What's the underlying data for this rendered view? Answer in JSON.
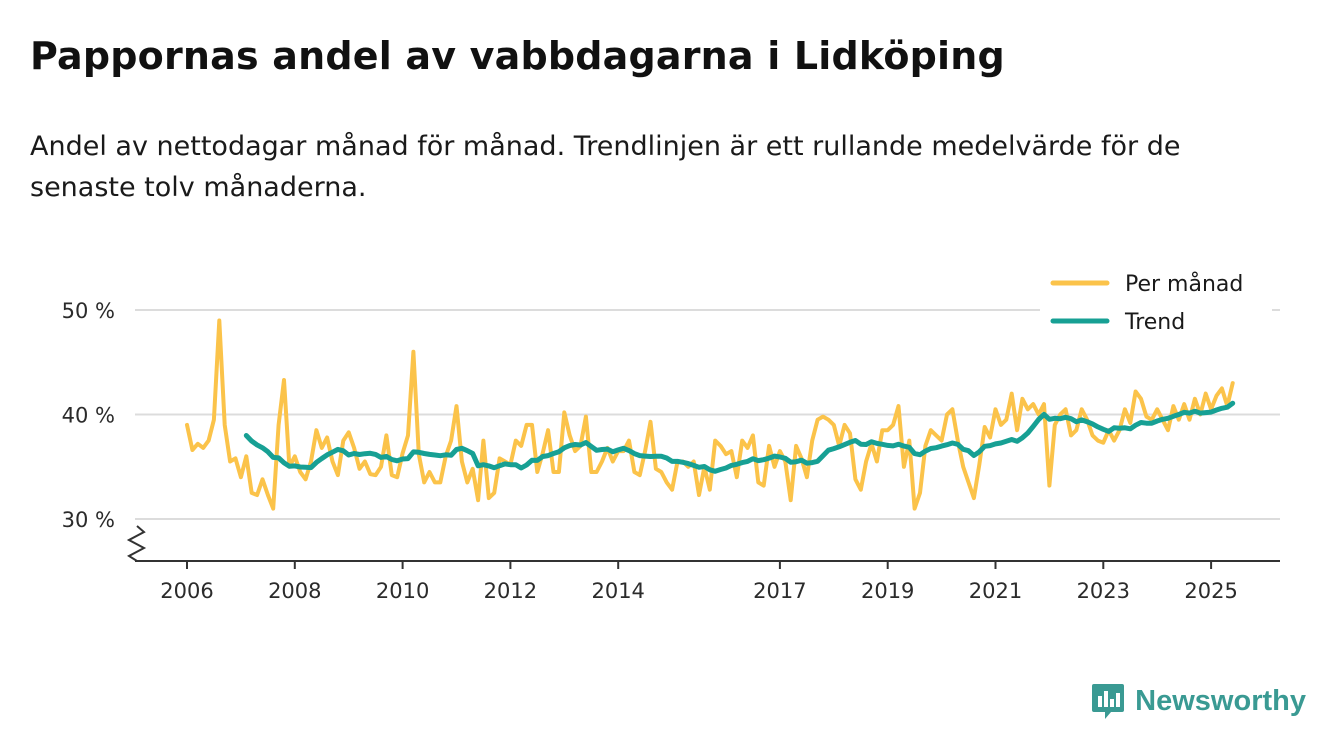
{
  "title": "Pappornas andel av vabbdagarna i Lidköping",
  "subtitle": "Andel av nettodagar månad för månad. Trendlinjen är ett rullande medelvärde för de senaste tolv månaderna.",
  "brand": {
    "name": "Newsworthy",
    "icon": "newsworthy-chart-icon",
    "color": "#3a9a93"
  },
  "colors": {
    "monthly": "#fbc34a",
    "trend": "#17a094",
    "grid": "#dcdcdc",
    "axis": "#333333"
  },
  "chart_data": {
    "type": "line",
    "title": "Pappornas andel av vabbdagarna i Lidköping",
    "xlabel": "",
    "ylabel": "",
    "ylim": [
      26,
      50
    ],
    "y_ticks": [
      30,
      40,
      50
    ],
    "y_tick_labels": [
      "30 %",
      "40 %",
      "50 %"
    ],
    "x_ticks": [
      2006,
      2008,
      2010,
      2012,
      2014,
      2017,
      2019,
      2021,
      2023,
      2025
    ],
    "x_tick_labels": [
      "2006",
      "2008",
      "2010",
      "2012",
      "2014",
      "2017",
      "2019",
      "2021",
      "2023",
      "2025"
    ],
    "x_range": [
      2006,
      2025.4
    ],
    "axis_break": true,
    "grid": true,
    "legend_position": "top-right",
    "series": [
      {
        "name": "Per månad",
        "color": "#fbc34a",
        "points": [
          [
            2006.0,
            39.0
          ],
          [
            2006.1,
            36.6
          ],
          [
            2006.2,
            37.2
          ],
          [
            2006.3,
            36.8
          ],
          [
            2006.4,
            37.5
          ],
          [
            2006.5,
            39.5
          ],
          [
            2006.6,
            49.0
          ],
          [
            2006.7,
            39.0
          ],
          [
            2006.8,
            35.5
          ],
          [
            2006.9,
            35.8
          ],
          [
            2007.0,
            34.0
          ],
          [
            2007.1,
            36.0
          ],
          [
            2007.2,
            32.5
          ],
          [
            2007.3,
            32.3
          ],
          [
            2007.4,
            33.8
          ],
          [
            2007.5,
            32.3
          ],
          [
            2007.6,
            31.0
          ],
          [
            2007.7,
            39.0
          ],
          [
            2007.8,
            43.3
          ],
          [
            2007.9,
            35.0
          ],
          [
            2008.0,
            36.0
          ],
          [
            2008.1,
            34.5
          ],
          [
            2008.2,
            33.8
          ],
          [
            2008.3,
            35.5
          ],
          [
            2008.4,
            38.5
          ],
          [
            2008.5,
            36.8
          ],
          [
            2008.6,
            37.8
          ],
          [
            2008.7,
            35.5
          ],
          [
            2008.8,
            34.2
          ],
          [
            2008.9,
            37.5
          ],
          [
            2009.0,
            38.3
          ],
          [
            2009.1,
            36.8
          ],
          [
            2009.2,
            34.8
          ],
          [
            2009.3,
            35.5
          ],
          [
            2009.4,
            34.3
          ],
          [
            2009.5,
            34.2
          ],
          [
            2009.6,
            35.0
          ],
          [
            2009.7,
            38.0
          ],
          [
            2009.8,
            34.2
          ],
          [
            2009.9,
            34.0
          ],
          [
            2010.0,
            36.3
          ],
          [
            2010.1,
            38.0
          ],
          [
            2010.2,
            46.0
          ],
          [
            2010.3,
            36.2
          ],
          [
            2010.4,
            33.5
          ],
          [
            2010.5,
            34.5
          ],
          [
            2010.6,
            33.5
          ],
          [
            2010.7,
            33.5
          ],
          [
            2010.8,
            36.0
          ],
          [
            2010.9,
            37.5
          ],
          [
            2011.0,
            40.8
          ],
          [
            2011.1,
            35.5
          ],
          [
            2011.2,
            33.5
          ],
          [
            2011.3,
            34.8
          ],
          [
            2011.4,
            31.8
          ],
          [
            2011.5,
            37.5
          ],
          [
            2011.6,
            32.0
          ],
          [
            2011.7,
            32.5
          ],
          [
            2011.8,
            35.8
          ],
          [
            2011.9,
            35.5
          ],
          [
            2012.0,
            35.2
          ],
          [
            2012.1,
            37.5
          ],
          [
            2012.2,
            37.0
          ],
          [
            2012.3,
            39.0
          ],
          [
            2012.4,
            39.0
          ],
          [
            2012.5,
            34.5
          ],
          [
            2012.6,
            36.3
          ],
          [
            2012.7,
            38.5
          ],
          [
            2012.8,
            34.5
          ],
          [
            2012.9,
            34.5
          ],
          [
            2013.0,
            40.2
          ],
          [
            2013.1,
            38.0
          ],
          [
            2013.2,
            36.5
          ],
          [
            2013.3,
            37.0
          ],
          [
            2013.4,
            39.8
          ],
          [
            2013.5,
            34.5
          ],
          [
            2013.6,
            34.5
          ],
          [
            2013.7,
            35.5
          ],
          [
            2013.8,
            36.8
          ],
          [
            2013.9,
            35.5
          ],
          [
            2014.0,
            36.5
          ],
          [
            2014.1,
            36.5
          ],
          [
            2014.2,
            37.5
          ],
          [
            2014.3,
            34.5
          ],
          [
            2014.4,
            34.2
          ],
          [
            2014.5,
            36.5
          ],
          [
            2014.6,
            39.3
          ],
          [
            2014.7,
            34.8
          ],
          [
            2014.8,
            34.5
          ],
          [
            2014.9,
            33.5
          ],
          [
            2015.0,
            32.8
          ],
          [
            2015.1,
            35.5
          ],
          [
            2015.2,
            35.5
          ],
          [
            2015.3,
            35.0
          ],
          [
            2015.4,
            35.5
          ],
          [
            2015.5,
            32.3
          ],
          [
            2015.6,
            35.0
          ],
          [
            2015.7,
            32.8
          ],
          [
            2015.8,
            37.5
          ],
          [
            2015.9,
            37.0
          ],
          [
            2016.0,
            36.2
          ],
          [
            2016.1,
            36.5
          ],
          [
            2016.2,
            34.0
          ],
          [
            2016.3,
            37.5
          ],
          [
            2016.4,
            36.8
          ],
          [
            2016.5,
            38.0
          ],
          [
            2016.6,
            33.5
          ],
          [
            2016.7,
            33.2
          ],
          [
            2016.8,
            37.0
          ],
          [
            2016.9,
            35.0
          ],
          [
            2017.0,
            36.5
          ],
          [
            2017.1,
            35.5
          ],
          [
            2017.2,
            31.8
          ],
          [
            2017.3,
            37.0
          ],
          [
            2017.4,
            35.8
          ],
          [
            2017.5,
            34.0
          ],
          [
            2017.6,
            37.5
          ],
          [
            2017.7,
            39.5
          ],
          [
            2017.8,
            39.8
          ],
          [
            2017.9,
            39.5
          ],
          [
            2018.0,
            39.0
          ],
          [
            2018.1,
            37.0
          ],
          [
            2018.2,
            39.0
          ],
          [
            2018.3,
            38.2
          ],
          [
            2018.4,
            33.8
          ],
          [
            2018.5,
            32.8
          ],
          [
            2018.6,
            35.5
          ],
          [
            2018.7,
            37.2
          ],
          [
            2018.8,
            35.5
          ],
          [
            2018.9,
            38.5
          ],
          [
            2019.0,
            38.5
          ],
          [
            2019.1,
            39.0
          ],
          [
            2019.2,
            40.8
          ],
          [
            2019.3,
            35.0
          ],
          [
            2019.4,
            37.5
          ],
          [
            2019.5,
            31.0
          ],
          [
            2019.6,
            32.5
          ],
          [
            2019.7,
            37.0
          ],
          [
            2019.8,
            38.5
          ],
          [
            2019.9,
            38.0
          ],
          [
            2020.0,
            37.5
          ],
          [
            2020.1,
            40.0
          ],
          [
            2020.2,
            40.5
          ],
          [
            2020.3,
            37.5
          ],
          [
            2020.4,
            35.0
          ],
          [
            2020.5,
            33.5
          ],
          [
            2020.6,
            32.0
          ],
          [
            2020.7,
            35.2
          ],
          [
            2020.8,
            38.8
          ],
          [
            2020.9,
            37.8
          ],
          [
            2021.0,
            40.5
          ],
          [
            2021.1,
            39.0
          ],
          [
            2021.2,
            39.5
          ],
          [
            2021.3,
            42.0
          ],
          [
            2021.4,
            38.5
          ],
          [
            2021.5,
            41.5
          ],
          [
            2021.6,
            40.5
          ],
          [
            2021.7,
            41.0
          ],
          [
            2021.8,
            40.0
          ],
          [
            2021.9,
            41.0
          ],
          [
            2022.0,
            33.2
          ],
          [
            2022.1,
            39.0
          ],
          [
            2022.2,
            40.0
          ],
          [
            2022.3,
            40.5
          ],
          [
            2022.4,
            38.0
          ],
          [
            2022.5,
            38.5
          ],
          [
            2022.6,
            40.5
          ],
          [
            2022.7,
            39.5
          ],
          [
            2022.8,
            38.0
          ],
          [
            2022.9,
            37.5
          ],
          [
            2023.0,
            37.3
          ],
          [
            2023.1,
            38.5
          ],
          [
            2023.2,
            37.5
          ],
          [
            2023.3,
            38.5
          ],
          [
            2023.4,
            40.5
          ],
          [
            2023.5,
            39.2
          ],
          [
            2023.6,
            42.2
          ],
          [
            2023.7,
            41.5
          ],
          [
            2023.8,
            39.8
          ],
          [
            2023.9,
            39.5
          ],
          [
            2024.0,
            40.5
          ],
          [
            2024.1,
            39.5
          ],
          [
            2024.2,
            38.5
          ],
          [
            2024.3,
            40.8
          ],
          [
            2024.4,
            39.5
          ],
          [
            2024.5,
            41.0
          ],
          [
            2024.6,
            39.5
          ],
          [
            2024.7,
            41.5
          ],
          [
            2024.8,
            40.0
          ],
          [
            2024.9,
            42.0
          ],
          [
            2025.0,
            40.5
          ],
          [
            2025.1,
            41.8
          ],
          [
            2025.2,
            42.5
          ],
          [
            2025.3,
            40.8
          ],
          [
            2025.4,
            43.0
          ]
        ]
      },
      {
        "name": "Trend",
        "color": "#17a094",
        "points": []
      }
    ]
  }
}
